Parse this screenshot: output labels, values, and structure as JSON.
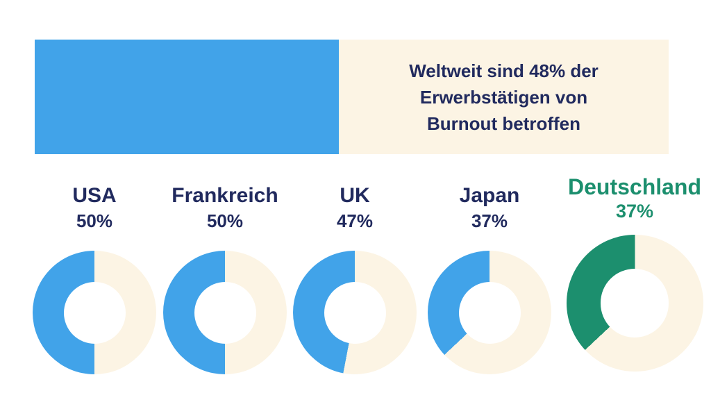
{
  "colors": {
    "background": "#FFFFFF",
    "white": "#FFFFFF",
    "blue": "#41A3E9",
    "cream": "#FCF4E4",
    "navy": "#212A5E",
    "green": "#1C8F6E"
  },
  "banner": {
    "fill_percent": 48,
    "headline_lines": [
      "Weltweit sind 48% der",
      "Erwerbstätigen von",
      "Burnout betroffen"
    ]
  },
  "chart_data": {
    "type": "pie",
    "variant": "donut-small-multiples",
    "title": "Weltweit sind 48% der Erwerbstätigen von Burnout betroffen",
    "world_percent": 48,
    "unit": "%",
    "fill_direction": "counterclockwise-from-top",
    "legend": false,
    "categories": [
      "USA",
      "Frankreich",
      "UK",
      "Japan",
      "Deutschland"
    ],
    "values": [
      50,
      50,
      47,
      37,
      37
    ],
    "donuts": [
      {
        "label": "USA",
        "value": 50,
        "value_label": "50%",
        "highlight": false
      },
      {
        "label": "Frankreich",
        "value": 50,
        "value_label": "50%",
        "highlight": false
      },
      {
        "label": "UK",
        "value": 47,
        "value_label": "47%",
        "highlight": false
      },
      {
        "label": "Japan",
        "value": 37,
        "value_label": "37%",
        "highlight": false
      },
      {
        "label": "Deutschland",
        "value": 37,
        "value_label": "37%",
        "highlight": true
      }
    ]
  }
}
